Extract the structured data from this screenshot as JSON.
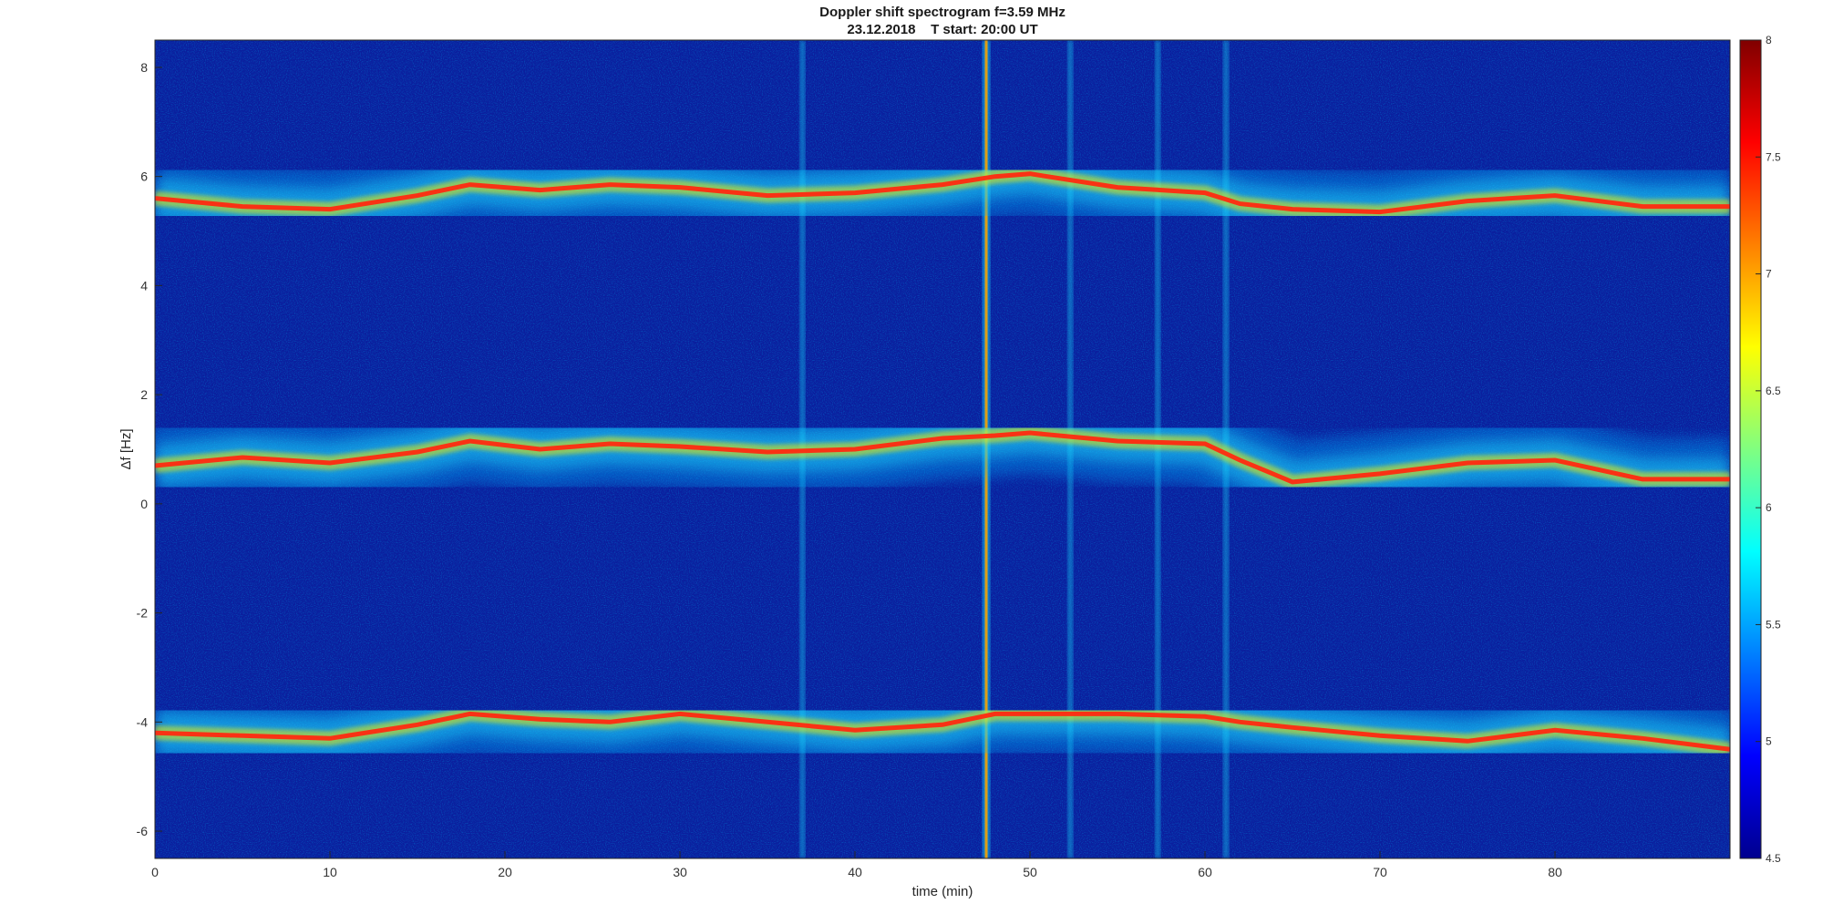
{
  "chart_data": {
    "type": "heatmap",
    "title": "Doppler shift spectrogram f=3.59 MHz",
    "subtitle": "23.12.2018    T start: 20:00 UT",
    "xlabel": "time (min)",
    "ylabel": "Δf [Hz]",
    "xlim": [
      0,
      90
    ],
    "ylim": [
      -6.5,
      8.5
    ],
    "x_ticks": [
      0,
      10,
      20,
      30,
      40,
      50,
      60,
      70,
      80
    ],
    "y_ticks": [
      -6,
      -4,
      -2,
      0,
      2,
      4,
      6,
      8
    ],
    "colorbar": {
      "colormap": "jet",
      "clim": [
        4.5,
        8
      ],
      "ticks": [
        4.5,
        5,
        5.5,
        6,
        6.5,
        7,
        7.5,
        8
      ]
    },
    "grid": false,
    "background_color": "#0a1f9e",
    "traces": [
      {
        "x": [
          0,
          5,
          10,
          15,
          18,
          22,
          26,
          30,
          35,
          40,
          45,
          48,
          50,
          55,
          60,
          62,
          65,
          70,
          75,
          80,
          85,
          90
        ],
        "y": [
          5.6,
          5.45,
          5.4,
          5.65,
          5.85,
          5.75,
          5.85,
          5.8,
          5.65,
          5.7,
          5.85,
          6.0,
          6.05,
          5.8,
          5.7,
          5.5,
          5.4,
          5.35,
          5.55,
          5.65,
          5.45,
          5.45
        ]
      },
      {
        "x": [
          0,
          5,
          10,
          15,
          18,
          22,
          26,
          30,
          35,
          40,
          45,
          48,
          50,
          55,
          60,
          62,
          65,
          70,
          75,
          80,
          85,
          90
        ],
        "y": [
          0.7,
          0.85,
          0.75,
          0.95,
          1.15,
          1.0,
          1.1,
          1.05,
          0.95,
          1.0,
          1.2,
          1.25,
          1.3,
          1.15,
          1.1,
          0.8,
          0.4,
          0.55,
          0.75,
          0.8,
          0.45,
          0.45
        ]
      },
      {
        "x": [
          0,
          5,
          10,
          15,
          18,
          22,
          26,
          30,
          35,
          40,
          45,
          48,
          50,
          55,
          60,
          62,
          65,
          70,
          75,
          80,
          85,
          90
        ],
        "y": [
          -4.2,
          -4.25,
          -4.3,
          -4.05,
          -3.85,
          -3.95,
          -4.0,
          -3.85,
          -4.0,
          -4.15,
          -4.05,
          -3.85,
          -3.85,
          -3.85,
          -3.9,
          -4.0,
          -4.1,
          -4.25,
          -4.35,
          -4.15,
          -4.3,
          -4.5
        ]
      }
    ],
    "interference_lines_x": [
      37,
      47.5,
      52.3,
      57.3,
      61.2
    ]
  }
}
